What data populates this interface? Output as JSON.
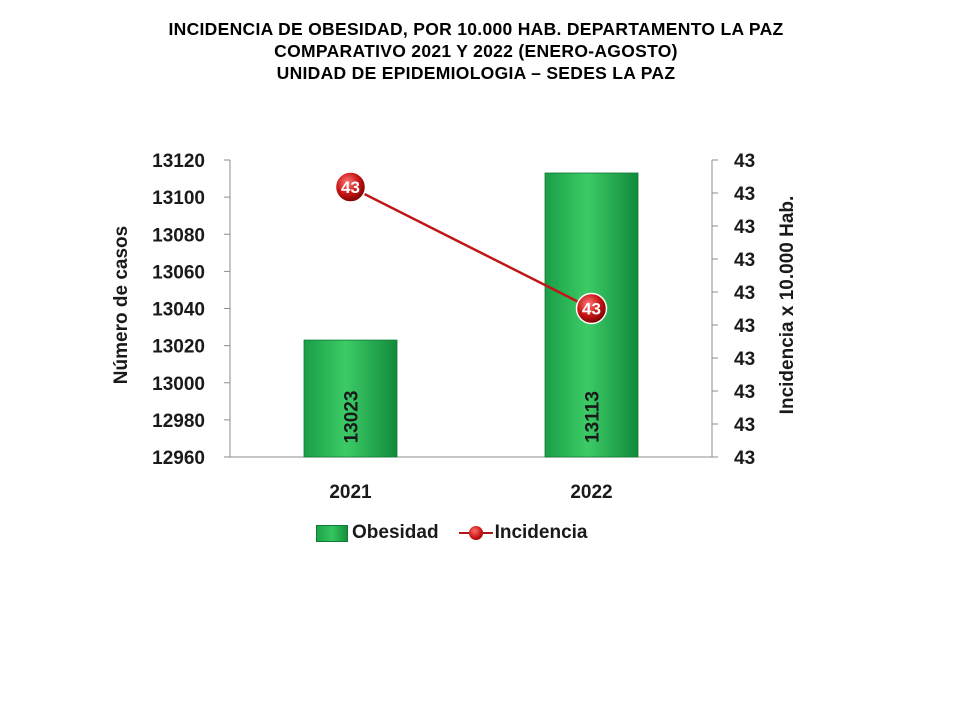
{
  "title_lines": [
    "INCIDENCIA  DE  OBESIDAD,  POR  10.000  HAB.  DEPARTAMENTO  LA  PAZ",
    "COMPARATIVO  2021  Y  2022  (ENERO-AGOSTO)",
    "UNIDAD DE EPIDEMIOLOGIA – SEDES LA PAZ"
  ],
  "chart_data": {
    "type": "bar",
    "categories": [
      "2021",
      "2022"
    ],
    "series": [
      {
        "name": "Obesidad",
        "type": "bar",
        "axis": "left",
        "values": [
          13023,
          13113
        ],
        "labels": [
          "13023",
          "13113"
        ],
        "color": "#22b14c"
      },
      {
        "name": "Incidencia",
        "type": "line",
        "axis": "right",
        "values": [
          43.4,
          43.31
        ],
        "labels": [
          "43",
          "43"
        ],
        "color": "#c0161a"
      }
    ],
    "ylabel": "Número de casos",
    "y2label": "Incidencia x 10.000 Hab.",
    "ylim": [
      12960,
      13120
    ],
    "yticks": [
      "12960",
      "12980",
      "13000",
      "13020",
      "13040",
      "13060",
      "13080",
      "13100",
      "13120"
    ],
    "y2lim": [
      43.2,
      43.42
    ],
    "y2ticks": [
      "43",
      "43",
      "43",
      "43",
      "43",
      "43",
      "43",
      "43",
      "43",
      "43"
    ],
    "grid": false,
    "legend_position": "bottom"
  }
}
